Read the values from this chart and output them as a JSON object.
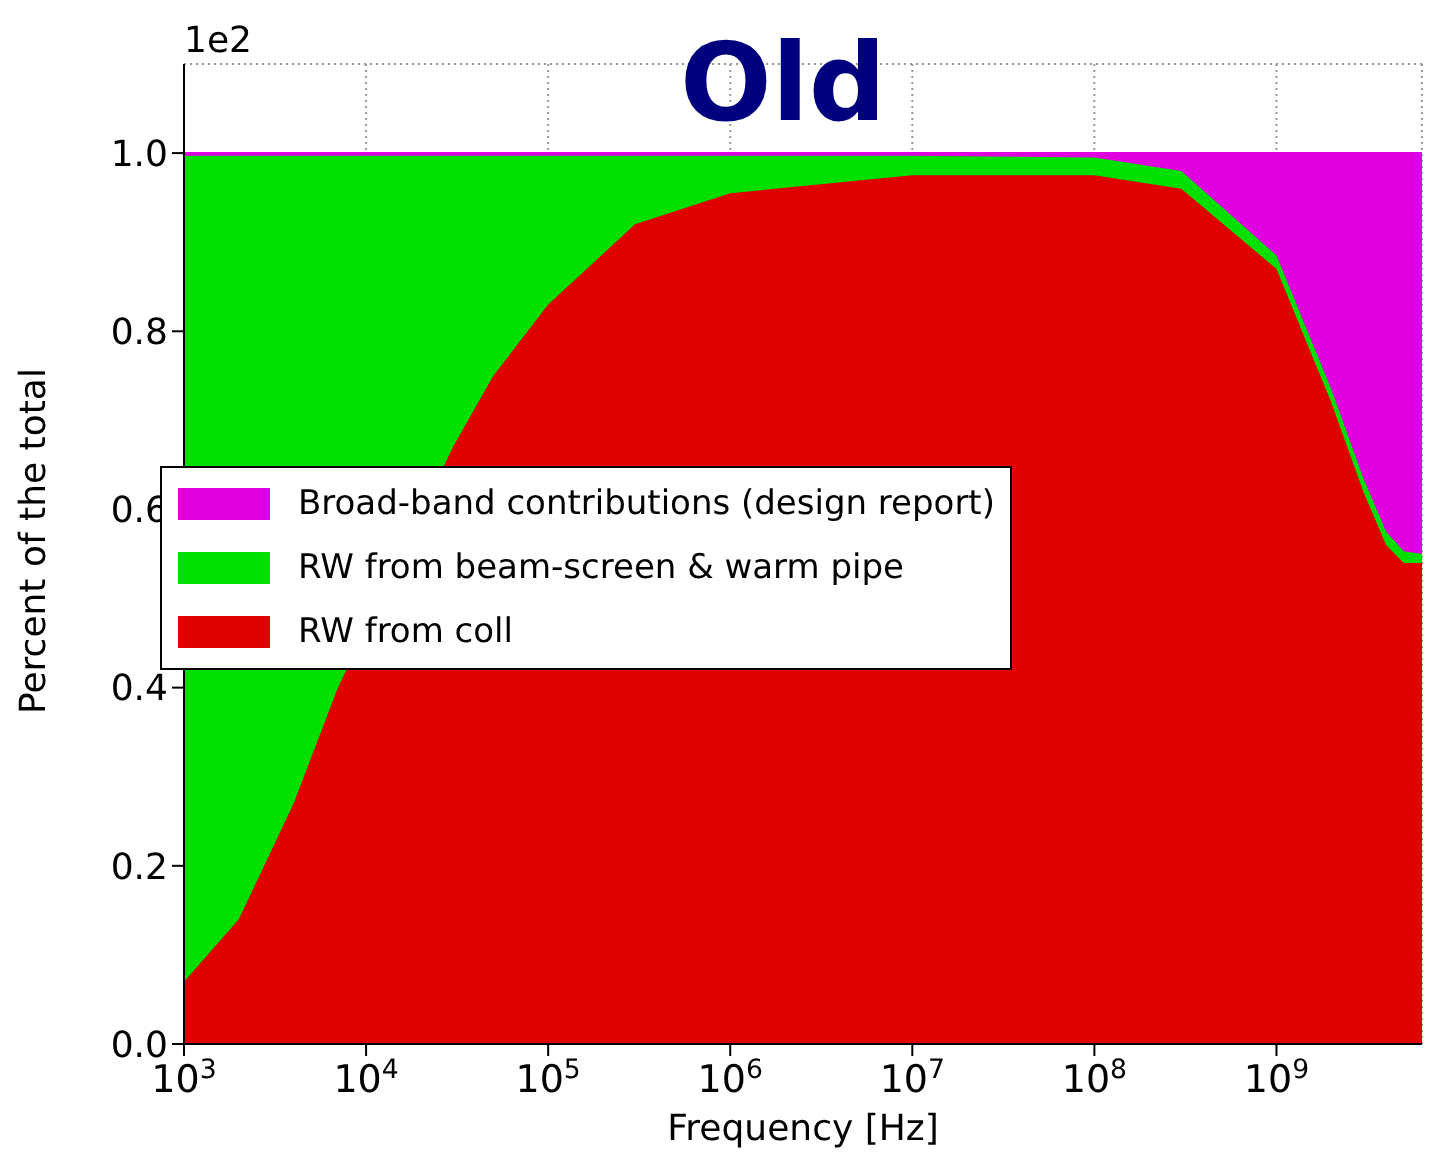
{
  "chart_data": {
    "type": "area",
    "stacked": true,
    "title": "Old",
    "xlabel": "Frequency [Hz]",
    "ylabel": "Percent of the total",
    "annotations": [
      "1e2"
    ],
    "log": "x",
    "x": [
      1000,
      2000,
      4000,
      7000,
      30000,
      50000,
      100000,
      300000,
      1000000,
      10000000,
      100000000,
      300000000,
      1000000000,
      2000000000,
      3000000000,
      4000000000,
      5000000000,
      6300000000
    ],
    "series": [
      {
        "name": "RW from coll",
        "color": "#e00000",
        "values": [
          0.07,
          0.14,
          0.27,
          0.4,
          0.67,
          0.75,
          0.83,
          0.92,
          0.955,
          0.975,
          0.975,
          0.96,
          0.87,
          0.72,
          0.62,
          0.56,
          0.54,
          0.54
        ]
      },
      {
        "name": "RW from beam-screen & warm pipe",
        "color": "#00e000",
        "values": [
          0.927,
          0.857,
          0.727,
          0.597,
          0.327,
          0.247,
          0.167,
          0.077,
          0.042,
          0.022,
          0.02,
          0.02,
          0.015,
          0.015,
          0.015,
          0.015,
          0.013,
          0.01
        ]
      },
      {
        "name": "Broad-band contributions (design report)",
        "color": "#e000e0",
        "values": [
          0.003,
          0.003,
          0.003,
          0.003,
          0.003,
          0.003,
          0.003,
          0.003,
          0.003,
          0.003,
          0.005,
          0.02,
          0.115,
          0.265,
          0.365,
          0.425,
          0.447,
          0.45
        ]
      }
    ],
    "xlim": [
      1000,
      6300000000
    ],
    "xticks": [
      {
        "value": 1000,
        "label": "10$^{3}$"
      },
      {
        "value": 10000,
        "label": "10$^{4}$"
      },
      {
        "value": 100000,
        "label": "10$^{5}$"
      },
      {
        "value": 1000000,
        "label": "10$^{6}$"
      },
      {
        "value": 10000000,
        "label": "10$^{7}$"
      },
      {
        "value": 100000000,
        "label": "10$^{8}$"
      },
      {
        "value": 1000000000,
        "label": "10$^{9}$"
      }
    ],
    "ylim": [
      0,
      1.1
    ],
    "yticks": [
      {
        "value": 0,
        "label": "0.0"
      },
      0.2,
      0.4,
      0.6,
      0.8,
      {
        "value": 1,
        "label": "1.0"
      }
    ],
    "grid": true,
    "legend": "center left"
  }
}
